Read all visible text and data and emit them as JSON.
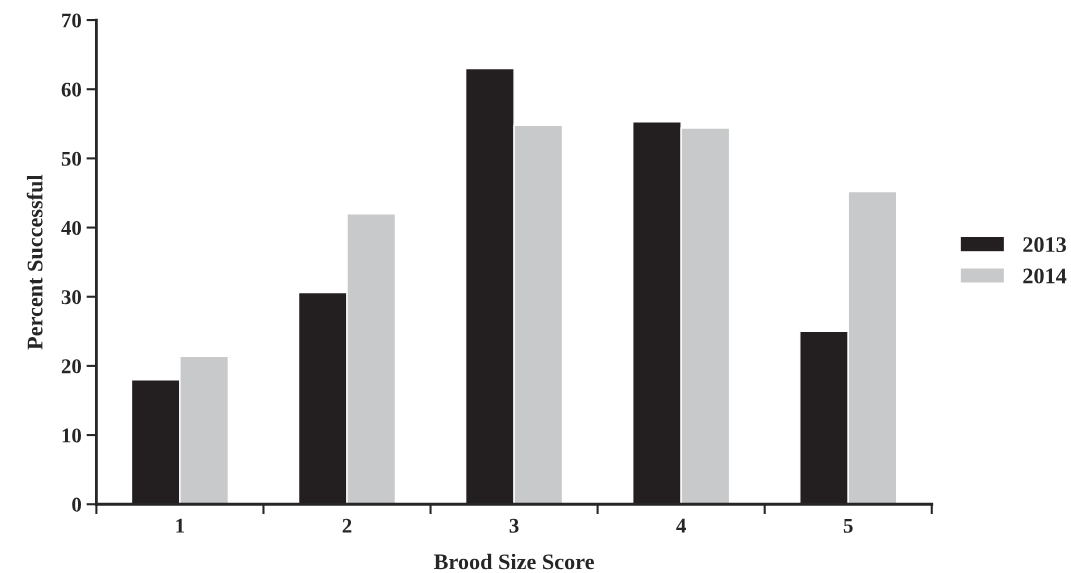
{
  "chart_data": {
    "type": "bar",
    "xlabel": "Brood Size Score",
    "ylabel": "Percent Successful",
    "categories": [
      "1",
      "2",
      "3",
      "4",
      "5"
    ],
    "series": [
      {
        "name": "2013",
        "color": "#231f20",
        "values": [
          18,
          30.6,
          63,
          55.3,
          25
        ]
      },
      {
        "name": "2014",
        "color": "#c8c9cb",
        "values": [
          21.4,
          42,
          54.8,
          54.4,
          45.2
        ]
      }
    ],
    "ylim": [
      0,
      70
    ],
    "yticks": [
      0,
      10,
      20,
      30,
      40,
      50,
      60,
      70
    ],
    "grid": false,
    "legend": "right"
  }
}
